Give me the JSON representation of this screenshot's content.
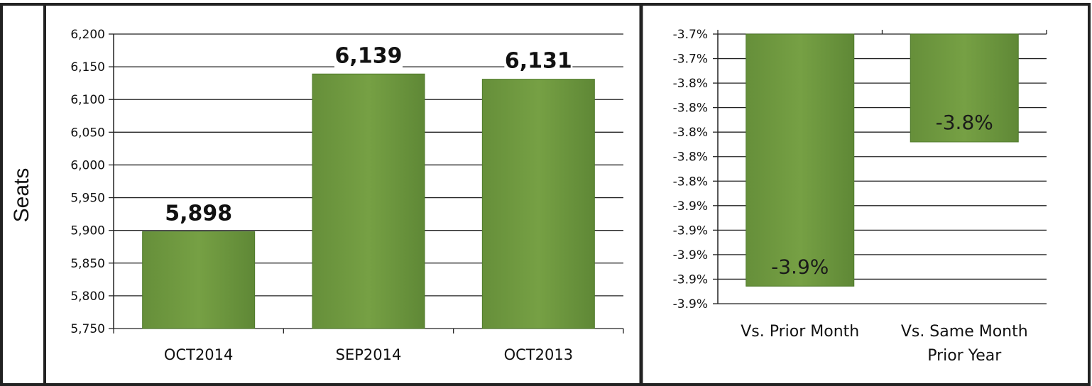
{
  "panel_label": "Seats",
  "colors": {
    "bar": "#6f9a40",
    "bar_edge": "#4f7a2a",
    "grid": "#222222",
    "text": "#111111"
  },
  "chart_data": [
    {
      "type": "bar",
      "categories": [
        "OCT2014",
        "SEP2014",
        "OCT2013"
      ],
      "values": [
        5898,
        6139,
        6131
      ],
      "data_labels": [
        "5,898",
        "6,139",
        "6,131"
      ],
      "ylabel": "Seats",
      "ylim": [
        5750,
        6200
      ],
      "yticks": [
        "6,200",
        "6,150",
        "6,100",
        "6,050",
        "6,000",
        "5,950",
        "5,900",
        "5,850",
        "5,800",
        "5,750"
      ],
      "grid": true
    },
    {
      "type": "bar",
      "categories": [
        "Vs. Prior Month",
        "Vs. Same Month Prior Year"
      ],
      "category_lines": [
        [
          "Vs. Prior Month"
        ],
        [
          "Vs. Same Month",
          "Prior Year"
        ]
      ],
      "values": [
        -3.9,
        -3.8
      ],
      "data_labels": [
        "-3.9%",
        "-3.8%"
      ],
      "ylim": [
        -3.9,
        -3.7
      ],
      "yticks": [
        "-3.7%",
        "-3.7%",
        "-3.8%",
        "-3.8%",
        "-3.8%",
        "-3.8%",
        "-3.8%",
        "-3.9%",
        "-3.9%",
        "-3.9%",
        "-3.9%",
        "-3.9%"
      ],
      "grid": true
    }
  ]
}
